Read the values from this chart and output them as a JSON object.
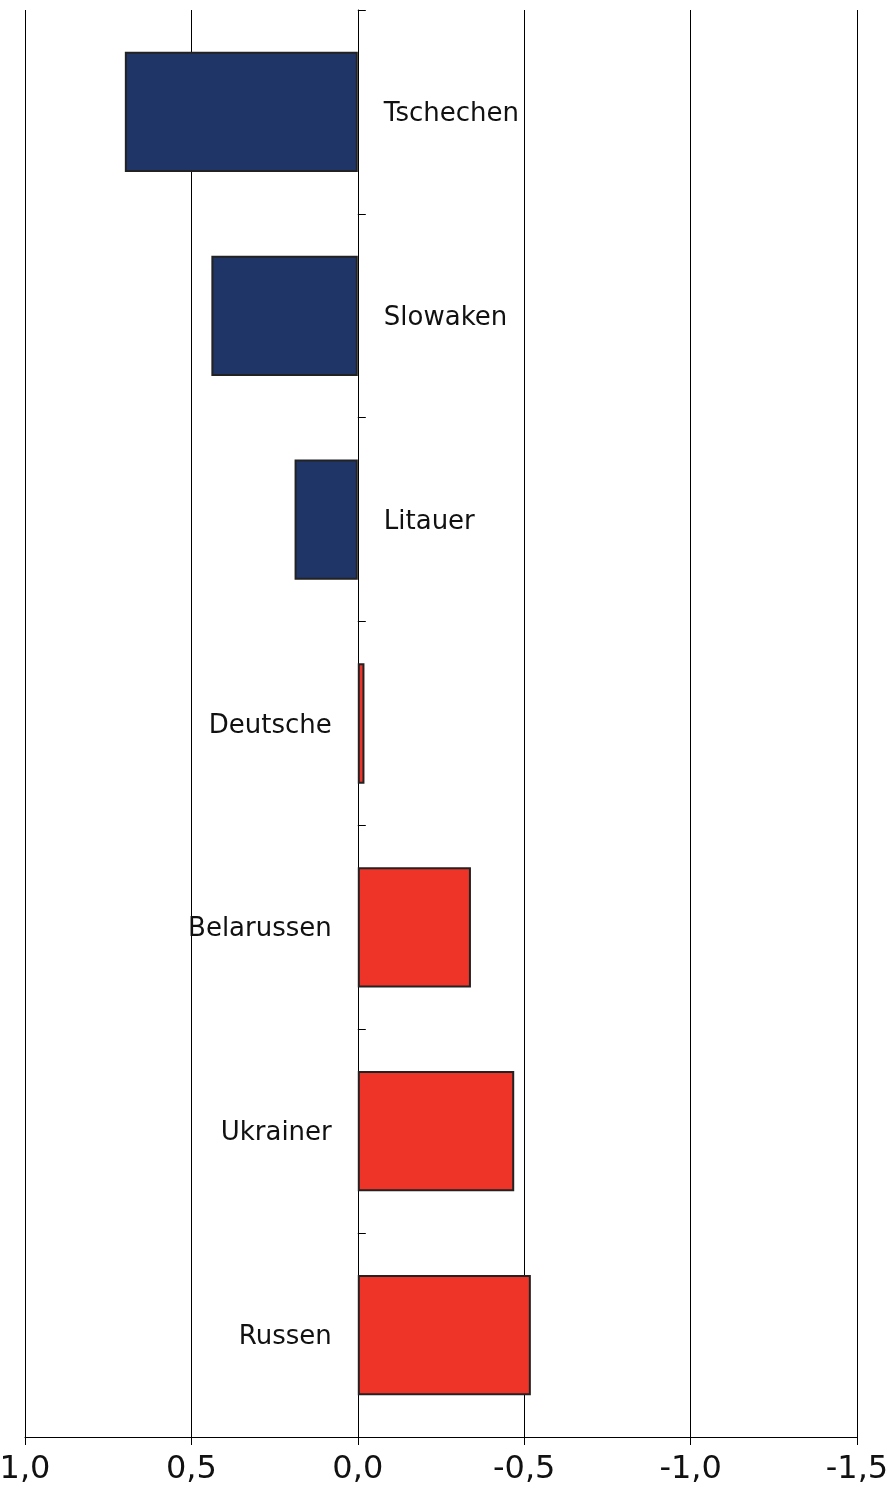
{
  "chart_data": {
    "type": "bar",
    "orientation": "horizontal",
    "categories": [
      "Tschechen",
      "Slowaken",
      "Litauer",
      "Deutsche",
      "Belarussen",
      "Ukrainer",
      "Russen"
    ],
    "values": [
      0.7,
      0.44,
      0.19,
      -0.02,
      -0.34,
      -0.47,
      -0.52
    ],
    "colors": [
      "#1f3568",
      "#1f3568",
      "#1f3568",
      "#ee3329",
      "#ee3329",
      "#ee3329",
      "#ee3329"
    ],
    "xlim": [
      1.0,
      -1.5
    ],
    "xticks": [
      {
        "value": 1.0,
        "label": "1,0"
      },
      {
        "value": 0.5,
        "label": "0,5"
      },
      {
        "value": 0.0,
        "label": "0,0"
      },
      {
        "value": -0.5,
        "label": "-0,5"
      },
      {
        "value": -1.0,
        "label": "-1,0"
      },
      {
        "value": -1.5,
        "label": "-1,5"
      }
    ],
    "grid": "x"
  }
}
